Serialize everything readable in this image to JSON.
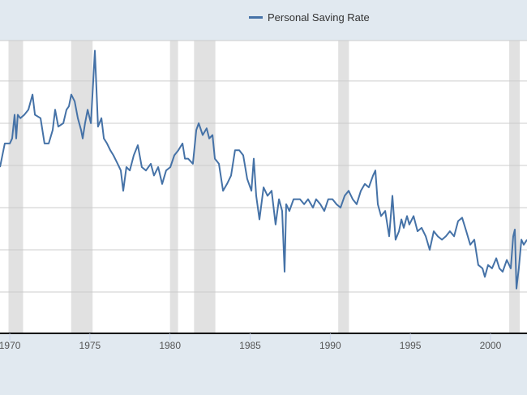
{
  "chart_data": {
    "type": "line",
    "title": "",
    "xlabel": "",
    "ylabel": "",
    "xlim": [
      1969.39,
      2002.28
    ],
    "ylim": [
      0,
      17.4
    ],
    "grid": true,
    "y_gridlines": [
      2.5,
      5,
      7.5,
      10,
      12.5,
      15,
      17.5
    ],
    "x_ticks": [
      1970,
      1975,
      1980,
      1985,
      1990,
      1995,
      2000
    ],
    "x_tick_labels": [
      "1970",
      "1975",
      "1980",
      "1985",
      "1990",
      "1995",
      "2000"
    ],
    "legend": {
      "placement": "top-center",
      "entries": [
        "Personal Saving Rate"
      ]
    },
    "colors": {
      "line": "#4572a7",
      "recession": "#e1e1e1",
      "grid": "#cccccc",
      "background": "#e1e9f0"
    },
    "recessions": [
      [
        1969.92,
        1970.83
      ],
      [
        1973.83,
        1975.17
      ],
      [
        1980.0,
        1980.5
      ],
      [
        1981.5,
        1982.83
      ],
      [
        1990.5,
        1991.17
      ],
      [
        2001.17,
        2001.83
      ]
    ],
    "series": [
      {
        "name": "Personal Saving Rate",
        "x": [
          1969.39,
          1969.69,
          1970.0,
          1970.15,
          1970.3,
          1970.4,
          1970.5,
          1970.66,
          1970.91,
          1971.16,
          1971.42,
          1971.57,
          1971.92,
          1972.17,
          1972.43,
          1972.68,
          1972.83,
          1973.03,
          1973.34,
          1973.54,
          1973.69,
          1973.84,
          1974.05,
          1974.25,
          1974.45,
          1974.55,
          1974.7,
          1974.86,
          1975.06,
          1975.21,
          1975.31,
          1975.41,
          1975.51,
          1975.72,
          1975.87,
          1976.07,
          1976.27,
          1976.47,
          1976.73,
          1976.93,
          1977.08,
          1977.28,
          1977.49,
          1977.74,
          1977.99,
          1978.24,
          1978.5,
          1978.8,
          1979.0,
          1979.26,
          1979.51,
          1979.76,
          1980.02,
          1980.27,
          1980.52,
          1980.78,
          1980.93,
          1981.13,
          1981.43,
          1981.64,
          1981.79,
          1982.04,
          1982.29,
          1982.45,
          1982.65,
          1982.8,
          1983.05,
          1983.31,
          1983.56,
          1983.81,
          1984.06,
          1984.32,
          1984.57,
          1984.82,
          1985.08,
          1985.23,
          1985.38,
          1985.58,
          1985.84,
          1986.09,
          1986.34,
          1986.59,
          1986.8,
          1987.0,
          1987.15,
          1987.25,
          1987.45,
          1987.71,
          1988.11,
          1988.37,
          1988.62,
          1988.92,
          1989.12,
          1989.38,
          1989.63,
          1989.88,
          1990.14,
          1990.39,
          1990.64,
          1990.9,
          1991.15,
          1991.4,
          1991.65,
          1991.91,
          1992.16,
          1992.41,
          1992.67,
          1992.82,
          1992.97,
          1993.17,
          1993.43,
          1993.68,
          1993.88,
          1994.08,
          1994.29,
          1994.44,
          1994.59,
          1994.79,
          1994.94,
          1995.2,
          1995.45,
          1995.7,
          1995.96,
          1996.21,
          1996.46,
          1996.71,
          1996.97,
          1997.22,
          1997.47,
          1997.73,
          1997.98,
          1998.23,
          1998.49,
          1998.74,
          1998.99,
          1999.24,
          1999.5,
          1999.65,
          1999.85,
          2000.1,
          2000.36,
          2000.56,
          2000.76,
          2001.02,
          2001.27,
          2001.42,
          2001.52,
          2001.62,
          2001.77,
          2001.93,
          2002.08,
          2002.28
        ],
        "y": [
          9.9,
          11.3,
          11.3,
          11.6,
          13.0,
          11.6,
          13.0,
          12.8,
          13.0,
          13.3,
          14.2,
          13.0,
          12.8,
          11.3,
          11.3,
          12.1,
          13.3,
          12.3,
          12.5,
          13.3,
          13.5,
          14.2,
          13.8,
          12.8,
          12.1,
          11.6,
          12.5,
          13.3,
          12.5,
          15.0,
          16.8,
          14.5,
          12.3,
          12.8,
          11.6,
          11.3,
          10.9,
          10.6,
          10.1,
          9.7,
          8.5,
          9.9,
          9.7,
          10.6,
          11.2,
          9.9,
          9.7,
          10.1,
          9.4,
          9.9,
          8.9,
          9.7,
          9.9,
          10.6,
          10.9,
          11.3,
          10.4,
          10.4,
          10.1,
          12.1,
          12.5,
          11.8,
          12.2,
          11.6,
          11.8,
          10.4,
          10.1,
          8.5,
          8.9,
          9.4,
          10.9,
          10.9,
          10.6,
          9.2,
          8.5,
          10.4,
          8.2,
          6.8,
          8.7,
          8.2,
          8.5,
          6.5,
          8.0,
          7.3,
          3.7,
          7.7,
          7.3,
          8.0,
          8.0,
          7.7,
          8.0,
          7.5,
          8.0,
          7.7,
          7.3,
          8.0,
          8.0,
          7.7,
          7.5,
          8.2,
          8.5,
          8.0,
          7.7,
          8.5,
          8.9,
          8.7,
          9.4,
          9.7,
          7.7,
          7.0,
          7.3,
          5.8,
          8.2,
          5.6,
          6.1,
          6.8,
          6.3,
          7.0,
          6.5,
          7.0,
          6.1,
          6.3,
          5.8,
          5.0,
          6.1,
          5.8,
          5.6,
          5.8,
          6.1,
          5.8,
          6.7,
          6.9,
          6.1,
          5.3,
          5.6,
          4.1,
          3.9,
          3.4,
          4.1,
          3.9,
          4.5,
          3.9,
          3.7,
          4.4,
          3.9,
          5.8,
          6.2,
          2.7,
          3.9,
          5.6,
          5.3,
          5.6
        ]
      }
    ]
  }
}
